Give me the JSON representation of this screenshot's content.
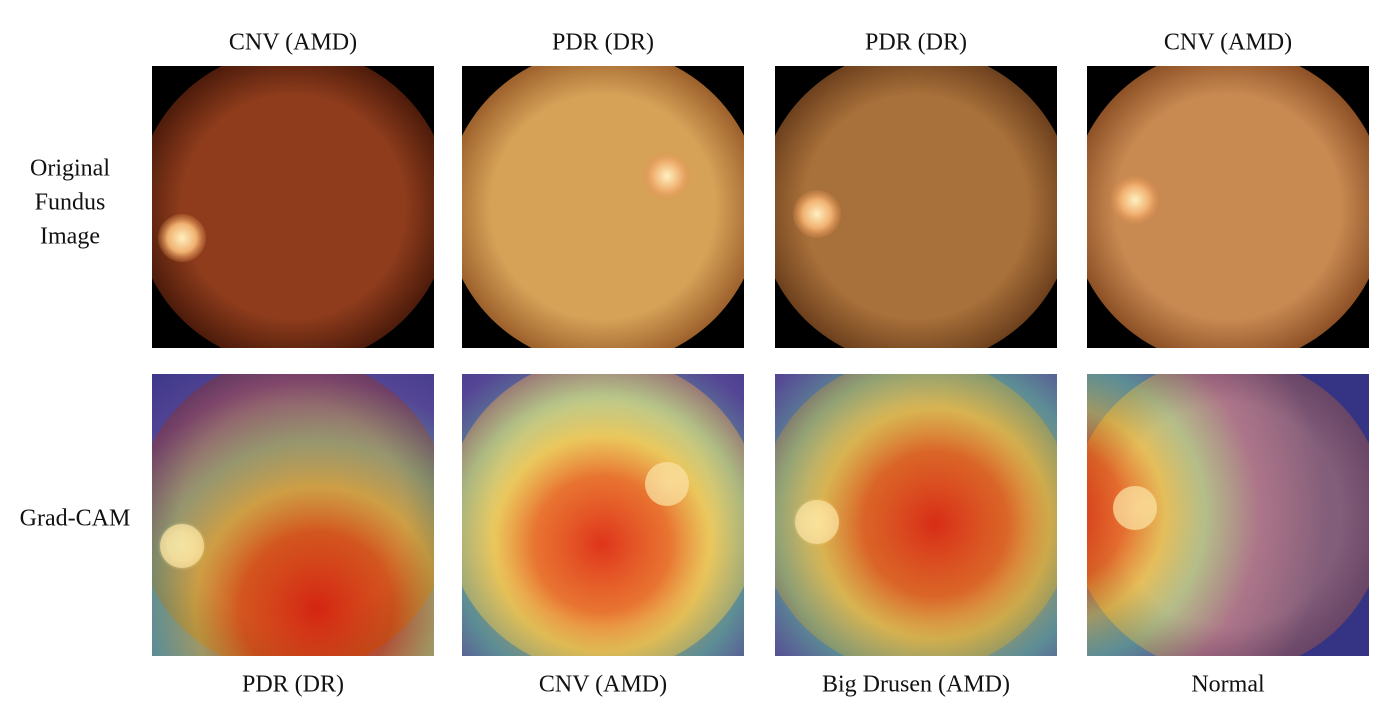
{
  "row_labels": [
    [
      "Original",
      "Fundus",
      "Image"
    ],
    [
      "Grad-CAM"
    ]
  ],
  "columns": [
    {
      "top_label": "CNV (AMD)",
      "bottom_label": "PDR (DR)"
    },
    {
      "top_label": "PDR (DR)",
      "bottom_label": "CNV (AMD)"
    },
    {
      "top_label": "PDR (DR)",
      "bottom_label": "Big Drusen (AMD)"
    },
    {
      "top_label": "CNV (AMD)",
      "bottom_label": "Normal"
    }
  ]
}
